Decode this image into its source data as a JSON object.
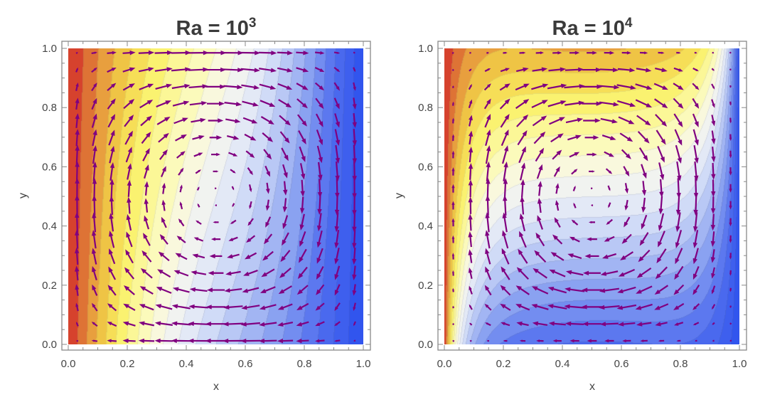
{
  "chart_data": [
    {
      "type": "heatmap",
      "overlay": "vector-field",
      "title": "Ra = 10",
      "title_exponent": "3",
      "Ra": 1000,
      "xlabel": "x",
      "ylabel": "y",
      "xlim": [
        0,
        1
      ],
      "ylim": [
        0,
        1
      ],
      "xticks": [
        "0.0",
        "0.2",
        "0.4",
        "0.6",
        "0.8",
        "1.0"
      ],
      "yticks": [
        "0.0",
        "0.2",
        "0.4",
        "0.6",
        "0.8",
        "1.0"
      ],
      "color_range": {
        "hot": "#d42a2a",
        "mid": "#f7f7f0",
        "cold": "#2b50ee"
      },
      "arrow_color": "#800080",
      "flow": "clockwise single cell"
    },
    {
      "type": "heatmap",
      "overlay": "vector-field",
      "title": "Ra = 10",
      "title_exponent": "4",
      "Ra": 10000,
      "xlabel": "x",
      "ylabel": "y",
      "xlim": [
        0,
        1
      ],
      "ylim": [
        0,
        1
      ],
      "xticks": [
        "0.0",
        "0.2",
        "0.4",
        "0.6",
        "0.8",
        "1.0"
      ],
      "yticks": [
        "0.0",
        "0.2",
        "0.4",
        "0.6",
        "0.8",
        "1.0"
      ],
      "color_range": {
        "hot": "#d42a2a",
        "mid": "#f7f7f0",
        "cold": "#2b50ee"
      },
      "arrow_color": "#800080",
      "flow": "clockwise cell with boundary layers"
    }
  ]
}
